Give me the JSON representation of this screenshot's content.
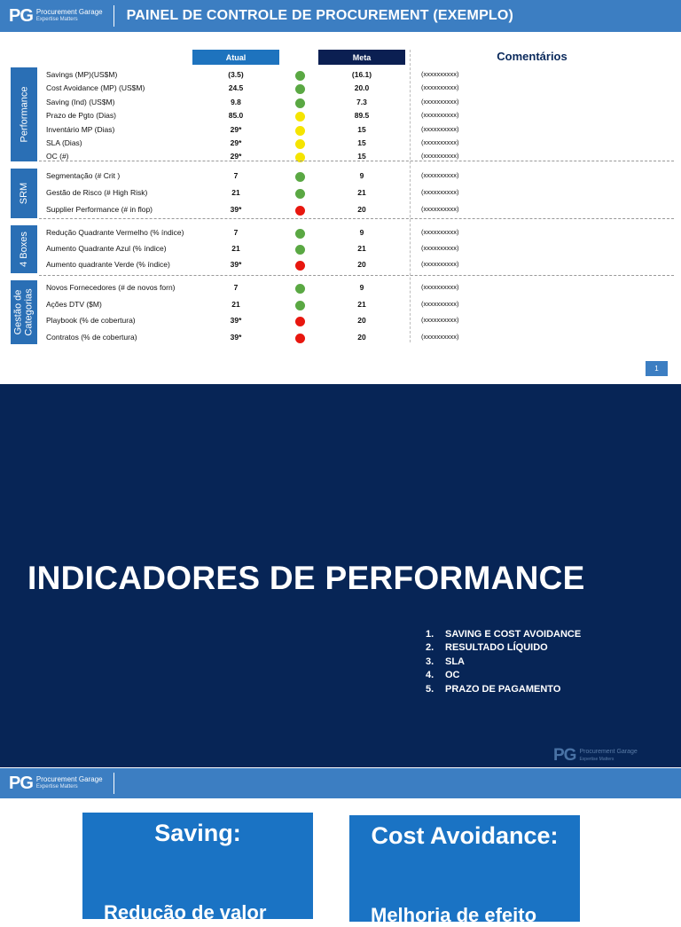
{
  "slide1": {
    "logo": {
      "mark": "PG",
      "line1": "Procurement Garage",
      "line2": "Expertise Matters"
    },
    "title": "PAINEL DE CONTROLE DE PROCUREMENT (EXEMPLO)",
    "headers": {
      "atual": "Atual",
      "meta": "Meta",
      "comentarios": "Comentários"
    },
    "sections": [
      {
        "label": "Performance",
        "rows": [
          {
            "name": "Savings (MP)(US$M)",
            "atual": "(3.5)",
            "status": "green",
            "meta": "(16.1)",
            "comment": "(xxxxxxxxxx)"
          },
          {
            "name": "Cost Avoidance (MP) (US$M)",
            "atual": "24.5",
            "status": "green",
            "meta": "20.0",
            "comment": "(xxxxxxxxxx)"
          },
          {
            "name": "Saving (Ind) (US$M)",
            "atual": "9.8",
            "status": "green",
            "meta": "7.3",
            "comment": "(xxxxxxxxxx)"
          },
          {
            "name": "Prazo de Pgto (Dias)",
            "atual": "85.0",
            "status": "yellow",
            "meta": "89.5",
            "comment": "(xxxxxxxxxx)"
          },
          {
            "name": "Inventário MP (Dias)",
            "atual": "29*",
            "status": "yellow",
            "meta": "15",
            "comment": "(xxxxxxxxxx)"
          },
          {
            "name": "SLA (Dias)",
            "atual": "29*",
            "status": "yellow",
            "meta": "15",
            "comment": "(xxxxxxxxxx)"
          },
          {
            "name": "OC (#)",
            "atual": "29*",
            "status": "yellow",
            "meta": "15",
            "comment": "(xxxxxxxxxx)"
          }
        ]
      },
      {
        "label": "SRM",
        "rows": [
          {
            "name": "Segmentação (# Crit )",
            "atual": "7",
            "status": "green",
            "meta": "9",
            "comment": "(xxxxxxxxxx)"
          },
          {
            "name": "Gestão de Risco (# High Risk)",
            "atual": "21",
            "status": "green",
            "meta": "21",
            "comment": "(xxxxxxxxxx)"
          },
          {
            "name": "Supplier Performance (# in flop)",
            "atual": "39*",
            "status": "red",
            "meta": "20",
            "comment": "(xxxxxxxxxx)"
          }
        ]
      },
      {
        "label": "4 Boxes",
        "rows": [
          {
            "name": "Redução Quadrante Vermelho (% índice)",
            "atual": "7",
            "status": "green",
            "meta": "9",
            "comment": "(xxxxxxxxxx)"
          },
          {
            "name": "Aumento Quadrante Azul (% índice)",
            "atual": "21",
            "status": "green",
            "meta": "21",
            "comment": "(xxxxxxxxxx)"
          },
          {
            "name": "Aumento quadrante Verde (% índice)",
            "atual": "39*",
            "status": "red",
            "meta": "20",
            "comment": "(xxxxxxxxxx)"
          }
        ]
      },
      {
        "label": "Gestão de Categorias",
        "rows": [
          {
            "name": "Novos Fornecedores (# de novos forn)",
            "atual": "7",
            "status": "green",
            "meta": "9",
            "comment": "(xxxxxxxxxx)"
          },
          {
            "name": "Ações DTV ($M)",
            "atual": "21",
            "status": "green",
            "meta": "21",
            "comment": "(xxxxxxxxxx)"
          },
          {
            "name": "Playbook (% de cobertura)",
            "atual": "39*",
            "status": "red",
            "meta": "20",
            "comment": "(xxxxxxxxxx)"
          },
          {
            "name": "Contratos (% de cobertura)",
            "atual": "39*",
            "status": "red",
            "meta": "20",
            "comment": "(xxxxxxxxxx)"
          }
        ]
      }
    ],
    "page_number": "1",
    "colors": {
      "green": "#5aa843",
      "yellow": "#f5e400",
      "red": "#e8170f"
    }
  },
  "slide2": {
    "title": "INDICADORES DE PERFORMANCE",
    "items": [
      {
        "num": "1.",
        "text": "SAVING E COST AVOIDANCE"
      },
      {
        "num": "2.",
        "text": "RESULTADO LÍQUIDO"
      },
      {
        "num": "3.",
        "text": "SLA"
      },
      {
        "num": "4.",
        "text": "OC"
      },
      {
        "num": "5.",
        "text": "PRAZO DE PAGAMENTO"
      }
    ],
    "logo": {
      "mark": "PG",
      "line1": "Procurement Garage",
      "line2": "Expertise Matters"
    }
  },
  "slide3": {
    "logo": {
      "mark": "PG",
      "line1": "Procurement Garage",
      "line2": "Expertise Matters"
    },
    "cards": [
      {
        "title": "Saving:",
        "body": "Redução de valor"
      },
      {
        "title": "Cost Avoidance:",
        "body": "Melhoria de efeito"
      }
    ]
  }
}
